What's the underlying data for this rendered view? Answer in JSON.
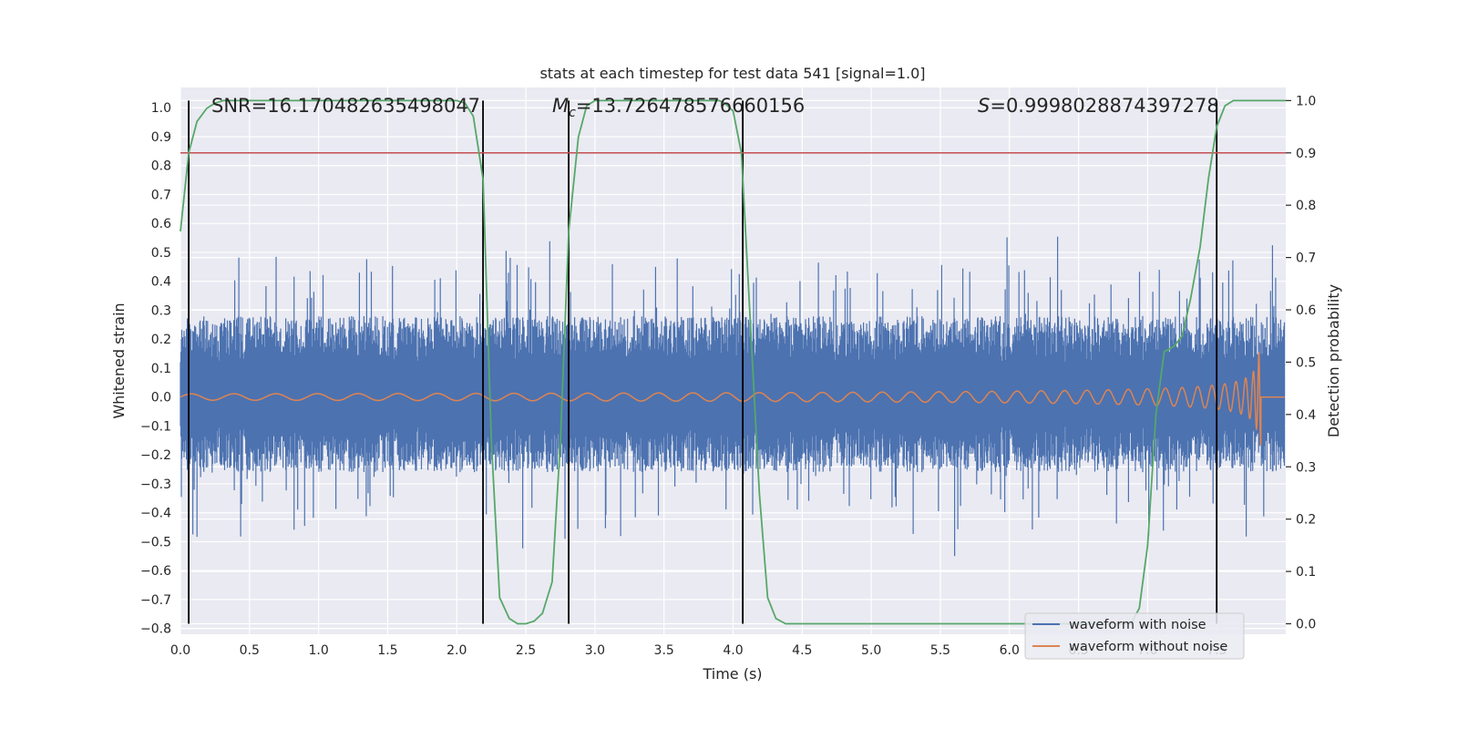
{
  "chart_data": {
    "type": "line",
    "title": "stats at each timestep for test data 541 [signal=1.0]",
    "xlabel": "Time (s)",
    "ylabel": "Whitened strain",
    "y2label": "Detection probability",
    "xlim": [
      0.0,
      8.0
    ],
    "ylim": [
      -0.82,
      1.07
    ],
    "y2lim": [
      -0.02,
      1.025
    ],
    "xticks": [
      "0.0",
      "0.5",
      "1.0",
      "1.5",
      "2.0",
      "2.5",
      "3.0",
      "3.5",
      "4.0",
      "4.5",
      "5.0",
      "5.5",
      "6.0",
      "6.5",
      "7.0",
      "7.5"
    ],
    "yticks": [
      "−0.8",
      "−0.7",
      "−0.6",
      "−0.5",
      "−0.4",
      "−0.3",
      "−0.2",
      "−0.1",
      "0.0",
      "0.1",
      "0.2",
      "0.3",
      "0.4",
      "0.5",
      "0.6",
      "0.7",
      "0.8",
      "0.9",
      "1.0"
    ],
    "y2ticks": [
      "0.0",
      "0.1",
      "0.2",
      "0.3",
      "0.4",
      "0.5",
      "0.6",
      "0.7",
      "0.8",
      "0.9",
      "1.0"
    ],
    "annotations": {
      "snr": "SNR=16.170482635498047",
      "mc_symbol": "M",
      "mc_sub": "c",
      "mc_value": "=13.726478576660156",
      "s_symbol": "S",
      "s_value": "=0.9998028874397278"
    },
    "threshold": {
      "y": 0.9,
      "axis": "right",
      "color": "#c44e52"
    },
    "event_markers_x": [
      0.06,
      2.19,
      2.81,
      4.07,
      7.5
    ],
    "noise_waveform": {
      "name": "waveform with noise",
      "color": "#4c72b0",
      "description": "whitened noisy strain, approx. ±0.3 baseline with peaks up to ~0.98 at t=7.75"
    },
    "clean_waveform": {
      "name": "waveform without noise",
      "color": "#dd8452",
      "description": "chirp signal from t=0 to merger at t≈7.8 s; amplitude 0.01 rising to ~0.68"
    },
    "detection_probability": {
      "color": "#55a868",
      "x": [
        0.0,
        0.06,
        0.12,
        0.19,
        0.25,
        0.31,
        0.38,
        0.44,
        0.5,
        0.75,
        1.0,
        1.5,
        1.75,
        2.0,
        2.06,
        2.12,
        2.19,
        2.25,
        2.31,
        2.38,
        2.44,
        2.5,
        2.56,
        2.62,
        2.69,
        2.75,
        2.81,
        2.88,
        2.94,
        3.0,
        3.5,
        3.9,
        3.94,
        4.0,
        4.06,
        4.12,
        4.19,
        4.25,
        4.31,
        4.38,
        4.44,
        4.5,
        5.0,
        6.0,
        6.5,
        6.88,
        6.94,
        7.0,
        7.06,
        7.12,
        7.19,
        7.25,
        7.31,
        7.38,
        7.44,
        7.5,
        7.56,
        7.62,
        7.69,
        7.75,
        7.81,
        7.88,
        7.94,
        8.0
      ],
      "values": [
        0.75,
        0.9,
        0.96,
        0.985,
        0.995,
        1.0,
        1.0,
        1.0,
        1.0,
        1.0,
        1.0,
        1.0,
        1.0,
        1.0,
        0.995,
        0.97,
        0.85,
        0.35,
        0.05,
        0.01,
        0.0,
        0.0,
        0.005,
        0.02,
        0.08,
        0.35,
        0.75,
        0.93,
        0.99,
        1.0,
        1.0,
        1.0,
        0.995,
        0.98,
        0.9,
        0.6,
        0.25,
        0.05,
        0.01,
        0.0,
        0.0,
        0.0,
        0.0,
        0.0,
        0.0,
        0.0,
        0.03,
        0.15,
        0.4,
        0.52,
        0.53,
        0.55,
        0.62,
        0.72,
        0.85,
        0.95,
        0.99,
        1.0,
        1.0,
        1.0,
        1.0,
        1.0,
        1.0,
        1.0
      ]
    },
    "legend": {
      "position": "lower-right",
      "entries": [
        "waveform with noise",
        "waveform without noise"
      ]
    }
  }
}
